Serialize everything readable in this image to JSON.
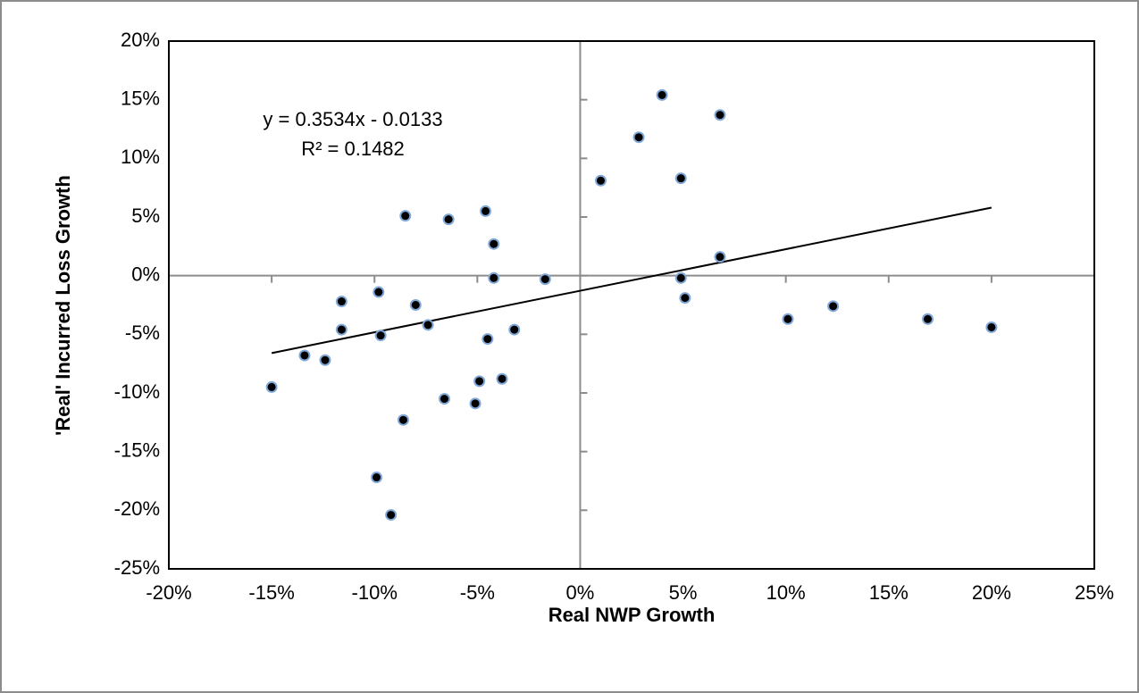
{
  "chart_data": {
    "type": "scatter",
    "xlabel": "Real NWP Growth",
    "ylabel": "'Real' Incurred Loss Growth",
    "annotations": [
      "y = 0.3534x - 0.0133",
      "R² = 0.1482"
    ],
    "series": [
      {
        "color": "#000000",
        "edge_color": "#7fa7d8",
        "x": [
          3.98,
          6.8,
          2.85,
          1.0,
          4.9,
          -8.5,
          -6.4,
          -4.6,
          -4.2,
          -4.2,
          -1.7,
          6.8,
          4.9,
          5.1,
          10.1,
          12.3,
          16.9,
          20.0,
          -11.6,
          -9.8,
          -8.0,
          -11.6,
          -9.7,
          -7.4,
          -4.5,
          -3.2,
          -13.4,
          -12.4,
          -15.0,
          -4.9,
          -3.8,
          -6.6,
          -5.1,
          -8.6,
          -9.9,
          -9.2
        ],
        "values": [
          15.4,
          13.7,
          11.8,
          8.1,
          8.3,
          5.1,
          4.8,
          5.5,
          2.7,
          -0.2,
          -0.3,
          1.6,
          -0.2,
          -1.9,
          -3.7,
          -2.6,
          -3.7,
          -4.4,
          -2.2,
          -1.4,
          -2.5,
          -4.6,
          -5.1,
          -4.2,
          -5.4,
          -4.6,
          -6.8,
          -7.2,
          -9.5,
          -9.0,
          -8.8,
          -10.5,
          -10.9,
          -12.3,
          -17.2,
          -20.4
        ]
      }
    ],
    "trendline": {
      "color": "#000000",
      "x": [
        -15,
        20
      ],
      "values": [
        -6.6,
        5.8
      ]
    },
    "xlim": [
      -20,
      25
    ],
    "xticks": [
      {
        "value": -20,
        "label": "-20%"
      },
      {
        "value": -15,
        "label": "-15%"
      },
      {
        "value": -10,
        "label": "-10%"
      },
      {
        "value": -5,
        "label": "-5%"
      },
      {
        "value": 0,
        "label": "0%"
      },
      {
        "value": 5,
        "label": "5%"
      },
      {
        "value": 10,
        "label": "10%"
      },
      {
        "value": 15,
        "label": "15%"
      },
      {
        "value": 20,
        "label": "20%"
      },
      {
        "value": 25,
        "label": "25%"
      }
    ],
    "ylim": [
      -25,
      20
    ],
    "yticks": [
      {
        "value": -25,
        "label": "-25%"
      },
      {
        "value": -20,
        "label": "-20%"
      },
      {
        "value": -15,
        "label": "-15%"
      },
      {
        "value": -10,
        "label": "-10%"
      },
      {
        "value": -5,
        "label": "-5%"
      },
      {
        "value": 0,
        "label": "0%"
      },
      {
        "value": 5,
        "label": "5%"
      },
      {
        "value": 10,
        "label": "10%"
      },
      {
        "value": 15,
        "label": "15%"
      },
      {
        "value": 20,
        "label": "20%"
      }
    ],
    "grid": false
  }
}
